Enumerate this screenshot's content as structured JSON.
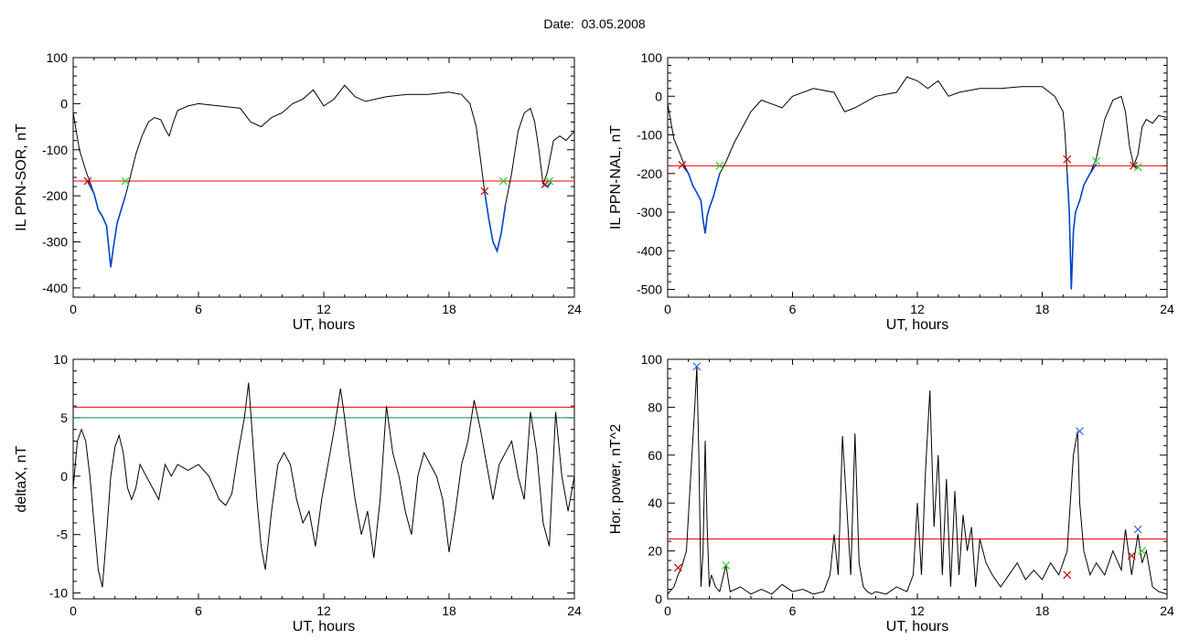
{
  "figure": {
    "title": "Date:  03.05.2008"
  },
  "chart_data": [
    {
      "type": "line",
      "xlabel": "UT, hours",
      "ylabel": "IL PPN-SOR, nT",
      "xlim": [
        0,
        24
      ],
      "ylim": [
        -420,
        100
      ],
      "xticks": [
        0,
        6,
        12,
        18,
        24
      ],
      "yticks": [
        -400,
        -300,
        -200,
        -100,
        0,
        100
      ],
      "grid": false,
      "series": [
        {
          "color": "#000000",
          "x": [
            0,
            0.3,
            0.6,
            0.8,
            1.0,
            1.2,
            1.4,
            1.6,
            1.7,
            1.8,
            1.9,
            2.0,
            2.1,
            2.3,
            2.5,
            2.7,
            3.0,
            3.3,
            3.6,
            3.9,
            4.2,
            4.4,
            4.6,
            4.8,
            5.0,
            5.5,
            6.0,
            7.0,
            8.0,
            8.5,
            9.0,
            9.5,
            10.0,
            10.5,
            11.0,
            11.5,
            12.0,
            12.5,
            13.0,
            13.5,
            14.0,
            15.0,
            16.0,
            17.0,
            18.0,
            18.6,
            19.0,
            19.3,
            19.5,
            19.7,
            19.9,
            20.1,
            20.3,
            20.5,
            20.7,
            21.0,
            21.3,
            21.6,
            21.9,
            22.1,
            22.3,
            22.5,
            22.7,
            23.0,
            23.3,
            23.6,
            24.0
          ],
          "y": [
            -20,
            -100,
            -145,
            -170,
            -195,
            -230,
            -245,
            -265,
            -310,
            -355,
            -320,
            -290,
            -260,
            -230,
            -200,
            -165,
            -110,
            -70,
            -40,
            -30,
            -35,
            -55,
            -70,
            -40,
            -15,
            -5,
            0,
            -5,
            -10,
            -40,
            -50,
            -30,
            -20,
            0,
            10,
            30,
            -5,
            10,
            40,
            15,
            5,
            15,
            20,
            20,
            25,
            20,
            0,
            -50,
            -120,
            -190,
            -250,
            -300,
            -320,
            -280,
            -220,
            -150,
            -60,
            -20,
            -10,
            -40,
            -100,
            -175,
            -150,
            -80,
            -70,
            -80,
            -60
          ]
        },
        {
          "color": "#0044cc",
          "x": [
            0.7,
            1.0,
            1.2,
            1.4,
            1.6,
            1.7,
            1.8,
            1.9,
            2.0,
            2.1,
            2.3,
            2.5
          ],
          "y": [
            -170,
            -195,
            -230,
            -245,
            -265,
            -310,
            -355,
            -320,
            -290,
            -260,
            -230,
            -200
          ]
        },
        {
          "color": "#0044cc",
          "x": [
            19.7,
            19.9,
            20.1,
            20.3,
            20.5,
            20.7
          ],
          "y": [
            -190,
            -250,
            -300,
            -320,
            -280,
            -220
          ]
        },
        {
          "color": "#0044cc",
          "x": [
            22.5,
            22.7,
            22.9
          ],
          "y": [
            -175,
            -180,
            -170
          ]
        }
      ],
      "hlines": [
        {
          "y": -168,
          "color": "#ff0000"
        }
      ],
      "markers": [
        {
          "x": 0.7,
          "y": -168,
          "color": "#cc0000"
        },
        {
          "x": 2.5,
          "y": -168,
          "color": "#33cc33"
        },
        {
          "x": 19.7,
          "y": -190,
          "color": "#cc0000"
        },
        {
          "x": 20.6,
          "y": -168,
          "color": "#33cc33"
        },
        {
          "x": 22.6,
          "y": -175,
          "color": "#cc0000"
        },
        {
          "x": 22.8,
          "y": -168,
          "color": "#33cc33"
        }
      ]
    },
    {
      "type": "line",
      "xlabel": "UT, hours",
      "ylabel": "IL PPN-NAL, nT",
      "xlim": [
        0,
        24
      ],
      "ylim": [
        -520,
        100
      ],
      "xticks": [
        0,
        6,
        12,
        18,
        24
      ],
      "yticks": [
        -500,
        -400,
        -300,
        -200,
        -100,
        0,
        100
      ],
      "grid": false,
      "series": [
        {
          "color": "#000000",
          "x": [
            0,
            0.3,
            0.6,
            0.8,
            1.0,
            1.2,
            1.4,
            1.6,
            1.7,
            1.8,
            1.9,
            2.0,
            2.2,
            2.5,
            2.8,
            3.2,
            3.6,
            4.0,
            4.5,
            5.0,
            5.5,
            6.0,
            7.0,
            8.0,
            8.5,
            9.0,
            10.0,
            11.0,
            11.5,
            12.0,
            12.5,
            13.0,
            13.5,
            14.0,
            15.0,
            16.0,
            17.0,
            18.0,
            18.6,
            19.0,
            19.1,
            19.2,
            19.3,
            19.4,
            19.5,
            19.6,
            19.8,
            20.0,
            20.3,
            20.6,
            21.0,
            21.4,
            21.8,
            22.0,
            22.2,
            22.4,
            22.6,
            22.8,
            23.0,
            23.3,
            23.6,
            24.0
          ],
          "y": [
            -20,
            -110,
            -150,
            -178,
            -200,
            -230,
            -250,
            -270,
            -320,
            -355,
            -310,
            -290,
            -260,
            -200,
            -170,
            -120,
            -80,
            -40,
            -10,
            -20,
            -30,
            0,
            20,
            10,
            -40,
            -30,
            0,
            10,
            50,
            40,
            20,
            40,
            0,
            10,
            20,
            20,
            25,
            25,
            0,
            -40,
            -100,
            -200,
            -300,
            -500,
            -350,
            -300,
            -270,
            -230,
            -200,
            -160,
            -60,
            -10,
            0,
            -40,
            -130,
            -180,
            -150,
            -80,
            -60,
            -70,
            -50,
            -55
          ]
        },
        {
          "color": "#0044cc",
          "x": [
            0.7,
            1.0,
            1.2,
            1.4,
            1.6,
            1.7,
            1.8,
            1.9,
            2.0,
            2.2,
            2.5
          ],
          "y": [
            -178,
            -200,
            -230,
            -250,
            -270,
            -320,
            -355,
            -310,
            -290,
            -260,
            -200
          ]
        },
        {
          "color": "#0044cc",
          "x": [
            19.2,
            19.3,
            19.4,
            19.5,
            19.6,
            19.8,
            20.0,
            20.3,
            20.6
          ],
          "y": [
            -200,
            -300,
            -500,
            -350,
            -300,
            -270,
            -230,
            -200,
            -175
          ]
        },
        {
          "color": "#0044cc",
          "x": [
            22.4,
            22.6
          ],
          "y": [
            -180,
            -185
          ]
        }
      ],
      "hlines": [
        {
          "y": -180,
          "color": "#ff0000"
        }
      ],
      "markers": [
        {
          "x": 0.7,
          "y": -178,
          "color": "#cc0000"
        },
        {
          "x": 2.5,
          "y": -180,
          "color": "#33cc33"
        },
        {
          "x": 19.2,
          "y": -163,
          "color": "#cc0000"
        },
        {
          "x": 20.6,
          "y": -168,
          "color": "#33cc33"
        },
        {
          "x": 22.4,
          "y": -180,
          "color": "#cc0000"
        },
        {
          "x": 22.6,
          "y": -183,
          "color": "#33cc33"
        }
      ]
    },
    {
      "type": "line",
      "xlabel": "UT, hours",
      "ylabel": "deltaX, nT",
      "xlim": [
        0,
        24
      ],
      "ylim": [
        -10.5,
        10
      ],
      "xticks": [
        0,
        6,
        12,
        18,
        24
      ],
      "yticks": [
        -10,
        -5,
        0,
        5,
        10
      ],
      "grid": false,
      "series": [
        {
          "color": "#000000",
          "x": [
            0,
            0.2,
            0.4,
            0.6,
            0.8,
            1.0,
            1.2,
            1.4,
            1.6,
            1.8,
            2.0,
            2.2,
            2.4,
            2.6,
            2.8,
            3.0,
            3.2,
            3.5,
            3.8,
            4.1,
            4.4,
            4.7,
            5.0,
            5.5,
            6.0,
            6.5,
            7.0,
            7.3,
            7.6,
            7.9,
            8.2,
            8.4,
            8.6,
            8.8,
            9.0,
            9.2,
            9.5,
            9.8,
            10.1,
            10.4,
            10.7,
            11.0,
            11.3,
            11.6,
            11.9,
            12.2,
            12.5,
            12.8,
            13.0,
            13.2,
            13.5,
            13.8,
            14.1,
            14.4,
            14.7,
            15.0,
            15.3,
            15.6,
            15.9,
            16.2,
            16.5,
            16.8,
            17.1,
            17.4,
            17.7,
            18.0,
            18.3,
            18.6,
            18.9,
            19.2,
            19.5,
            19.8,
            20.1,
            20.4,
            20.7,
            21.0,
            21.3,
            21.6,
            21.9,
            22.2,
            22.5,
            22.8,
            23.1,
            23.4,
            23.7,
            24.0
          ],
          "y": [
            -1,
            3,
            4,
            3,
            0,
            -4,
            -8,
            -9.5,
            -5,
            0,
            2.5,
            3.5,
            2,
            -1,
            -2,
            -1,
            1,
            0,
            -1,
            -2,
            1,
            0,
            1,
            0.5,
            1,
            0,
            -2,
            -2.5,
            -1.5,
            2,
            5,
            8,
            3,
            -2,
            -6,
            -8,
            -3,
            1,
            2,
            1,
            -2,
            -4,
            -3,
            -6,
            -2,
            1,
            4,
            7.5,
            5,
            2,
            -2,
            -5,
            -3,
            -7,
            -2,
            6,
            2,
            0,
            -3,
            -5,
            0,
            2,
            1,
            0,
            -2,
            -6.5,
            -3,
            1,
            3,
            6.5,
            4,
            1,
            -2,
            1,
            2,
            3,
            0,
            -2,
            5.5,
            2,
            -4,
            -6,
            5.5,
            0,
            -3,
            0
          ]
        }
      ],
      "hlines": [
        {
          "y": 5.9,
          "color": "#ff0000"
        },
        {
          "y": 5.0,
          "color": "#008080"
        }
      ],
      "markers": []
    },
    {
      "type": "line",
      "xlabel": "UT, hours",
      "ylabel": "Hor. power, nT^2",
      "xlim": [
        0,
        24
      ],
      "ylim": [
        0,
        100
      ],
      "xticks": [
        0,
        6,
        12,
        18,
        24
      ],
      "yticks": [
        0,
        20,
        40,
        60,
        80,
        100
      ],
      "grid": false,
      "series": [
        {
          "color": "#000000",
          "x": [
            0,
            0.3,
            0.5,
            0.7,
            0.9,
            1.1,
            1.3,
            1.4,
            1.5,
            1.6,
            1.7,
            1.8,
            1.9,
            2.0,
            2.1,
            2.3,
            2.5,
            2.8,
            3.0,
            3.5,
            4.0,
            4.5,
            5.0,
            5.5,
            6.0,
            6.5,
            7.0,
            7.5,
            7.8,
            8.0,
            8.2,
            8.4,
            8.6,
            8.8,
            9.0,
            9.2,
            9.4,
            9.6,
            9.8,
            10.0,
            10.5,
            11.0,
            11.5,
            11.8,
            12.0,
            12.2,
            12.4,
            12.6,
            12.8,
            13.0,
            13.2,
            13.4,
            13.6,
            13.8,
            14.0,
            14.2,
            14.4,
            14.6,
            14.8,
            15.0,
            15.3,
            15.6,
            16.0,
            16.4,
            16.8,
            17.2,
            17.6,
            18.0,
            18.4,
            18.8,
            19.2,
            19.5,
            19.7,
            19.8,
            20.0,
            20.3,
            20.6,
            21.0,
            21.4,
            21.8,
            22.0,
            22.3,
            22.6,
            22.8,
            23.0,
            23.3,
            23.6,
            24.0
          ],
          "y": [
            2,
            5,
            10,
            14,
            20,
            50,
            80,
            97,
            60,
            5,
            20,
            66,
            30,
            5,
            10,
            5,
            3,
            14,
            3,
            5,
            2,
            4,
            2,
            6,
            3,
            4,
            2,
            3,
            10,
            27,
            10,
            68,
            40,
            10,
            69,
            15,
            5,
            3,
            2,
            3,
            2,
            5,
            3,
            10,
            40,
            10,
            55,
            87,
            30,
            60,
            10,
            50,
            5,
            45,
            10,
            35,
            20,
            30,
            5,
            25,
            15,
            10,
            5,
            10,
            15,
            8,
            12,
            8,
            15,
            10,
            20,
            60,
            70,
            40,
            20,
            10,
            15,
            10,
            20,
            12,
            29,
            10,
            27,
            15,
            20,
            5,
            3,
            2
          ]
        }
      ],
      "hlines": [
        {
          "y": 25,
          "color": "#ff0000"
        }
      ],
      "markers": [
        {
          "x": 0.5,
          "y": 13,
          "color": "#cc0000"
        },
        {
          "x": 1.4,
          "y": 97,
          "color": "#3366ff"
        },
        {
          "x": 2.8,
          "y": 14,
          "color": "#33cc33"
        },
        {
          "x": 19.2,
          "y": 10,
          "color": "#cc0000"
        },
        {
          "x": 19.8,
          "y": 70,
          "color": "#3366ff"
        },
        {
          "x": 22.3,
          "y": 18,
          "color": "#cc0000"
        },
        {
          "x": 22.6,
          "y": 29,
          "color": "#3366ff"
        },
        {
          "x": 22.8,
          "y": 20,
          "color": "#33cc33"
        }
      ]
    }
  ]
}
